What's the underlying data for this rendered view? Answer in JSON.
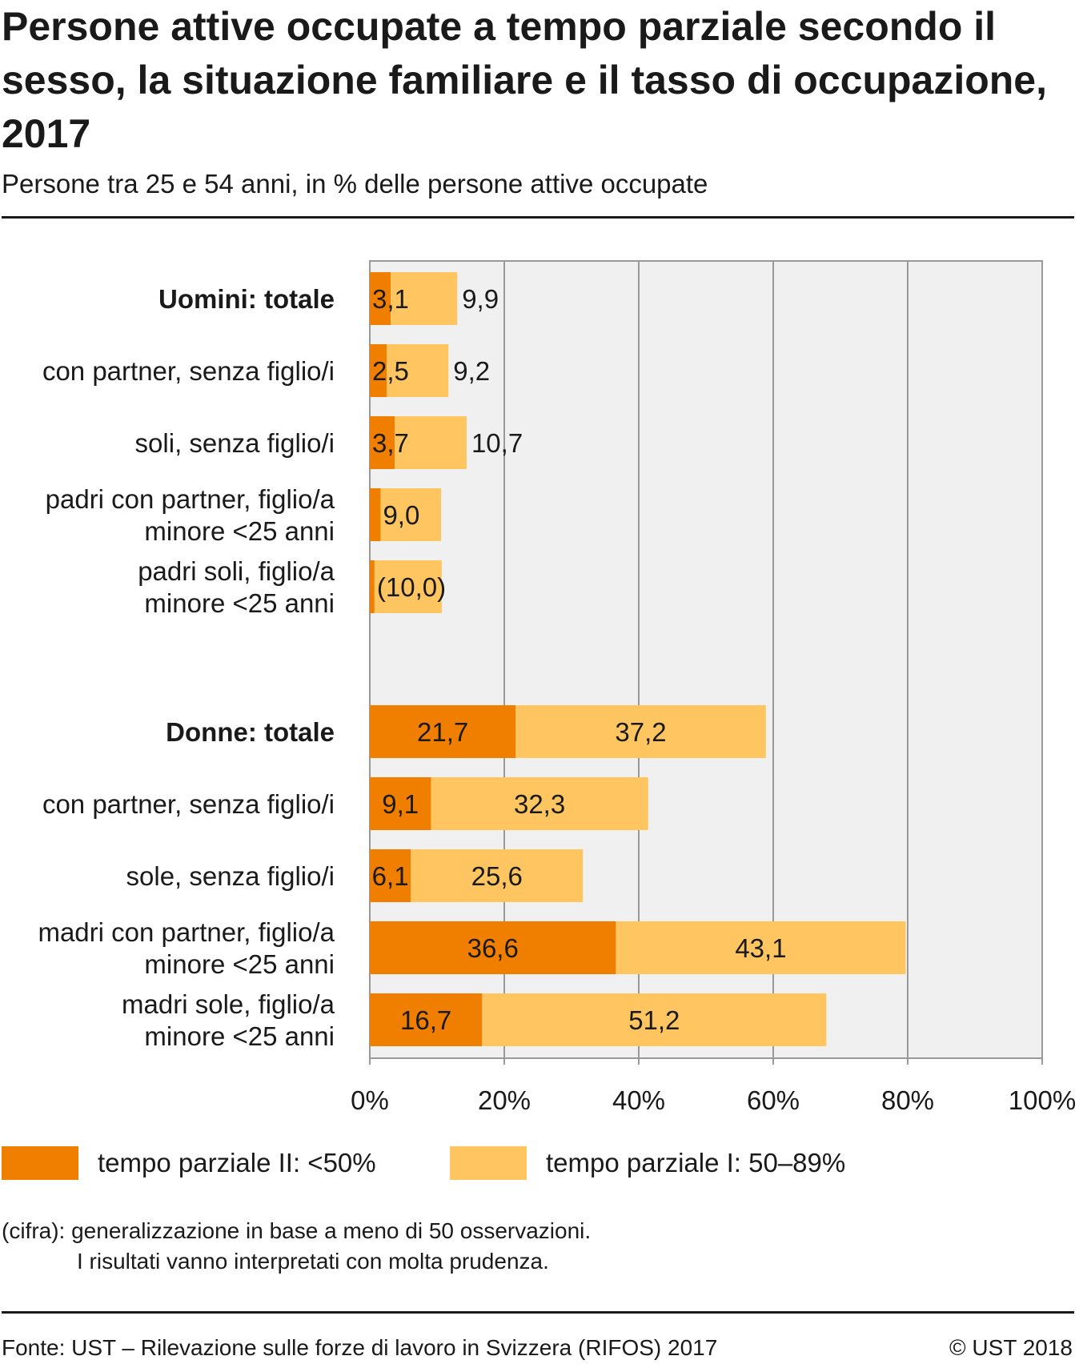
{
  "header": {
    "title": "Persone attive occupate a tempo parziale secondo il sesso, la situazione familiare e il tasso di occupazione, 2017",
    "subtitle": "Persone tra 25 e 54 anni, in % delle persone attive occupate"
  },
  "chart_data": {
    "type": "bar",
    "orientation": "horizontal",
    "stacked": true,
    "categories": [
      "Uomini: totale",
      "con partner, senza figlio/i",
      "soli, senza figlio/i",
      "padri con partner, figlio/a minore <25 anni",
      "padri soli, figlio/a minore <25 anni",
      "Donne: totale",
      "con partner, senza figlio/i",
      "sole, senza figlio/i",
      "madri con partner, figlio/a minore <25 anni",
      "madri sole, figlio/a minore <25 anni"
    ],
    "bold_categories": [
      0,
      5
    ],
    "series": [
      {
        "name": "tempo parziale II: <50%",
        "color": "#f07f00",
        "values": [
          3.1,
          2.5,
          3.7,
          1.6,
          0.7,
          21.7,
          9.1,
          6.1,
          36.6,
          16.7
        ],
        "labels": [
          "3,1",
          "2,5",
          "3,7",
          "",
          "",
          "21,7",
          "9,1",
          "6,1",
          "36,6",
          "16,7"
        ]
      },
      {
        "name": "tempo parziale I: 50–89%",
        "color": "#fec560",
        "values": [
          9.9,
          9.2,
          10.7,
          9.0,
          10.0,
          37.2,
          32.3,
          25.6,
          43.1,
          51.2
        ],
        "labels": [
          "9,9",
          "9,2",
          "10,7",
          "9,0",
          "(10,0)",
          "37,2",
          "32,3",
          "25,6",
          "43,1",
          "51,2"
        ]
      }
    ],
    "xlim": [
      0,
      100
    ],
    "xticks": [
      "0%",
      "20%",
      "40%",
      "60%",
      "80%",
      "100%"
    ],
    "grid": true,
    "legend_position": "bottom"
  },
  "legend": {
    "items": [
      {
        "label": "tempo parziale II: <50%",
        "color": "#f07f00"
      },
      {
        "label": "tempo parziale I: 50–89%",
        "color": "#fec560"
      }
    ]
  },
  "note": {
    "line1": "(cifra): generalizzazione in base a meno di 50 osservazioni.",
    "line2": "I risultati vanno interpretati con molta prudenza."
  },
  "footer": {
    "source": "Fonte: UST – Rilevazione sulle forze di lavoro in Svizzera (RIFOS) 2017",
    "copyright": "© UST 2018"
  }
}
